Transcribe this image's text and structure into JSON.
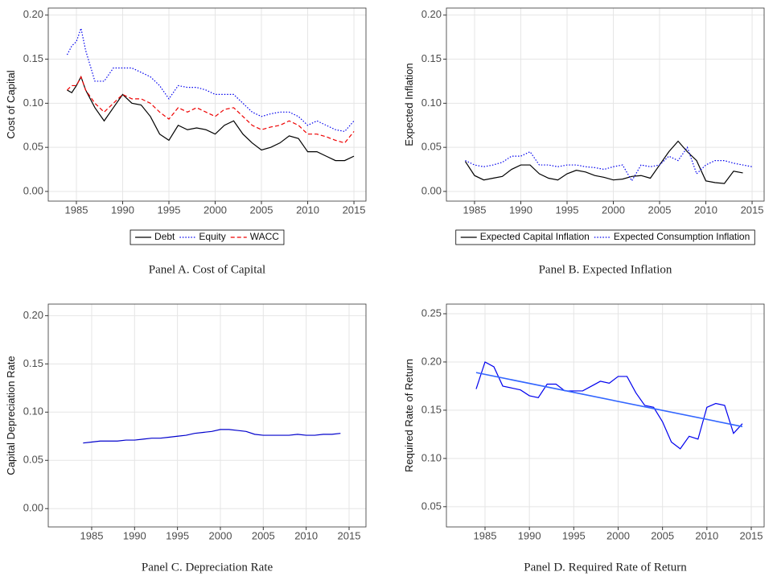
{
  "chart_data": [
    {
      "type": "line",
      "caption": "Panel A. Cost of Capital",
      "y_label": "Cost of Capital",
      "x": [
        1984,
        1984.5,
        1985,
        1985.5,
        1986,
        1987,
        1988,
        1989,
        1990,
        1991,
        1992,
        1993,
        1994,
        1995,
        1996,
        1997,
        1998,
        1999,
        2000,
        2001,
        2002,
        2003,
        2004,
        2005,
        2006,
        2007,
        2008,
        2009,
        2010,
        2011,
        2012,
        2013,
        2014,
        2015
      ],
      "series": [
        {
          "name": "Debt",
          "color": "#000000",
          "dash": "solid",
          "values": [
            0.115,
            0.112,
            0.12,
            0.13,
            0.115,
            0.095,
            0.08,
            0.095,
            0.11,
            0.1,
            0.098,
            0.085,
            0.065,
            0.058,
            0.075,
            0.07,
            0.072,
            0.07,
            0.065,
            0.075,
            0.08,
            0.065,
            0.055,
            0.047,
            0.05,
            0.055,
            0.063,
            0.06,
            0.045,
            0.045,
            0.04,
            0.035,
            0.035,
            0.04
          ]
        },
        {
          "name": "Equity",
          "color": "#0000ee",
          "dash": "dotted",
          "values": [
            0.155,
            0.165,
            0.17,
            0.185,
            0.16,
            0.125,
            0.125,
            0.14,
            0.14,
            0.14,
            0.135,
            0.13,
            0.12,
            0.105,
            0.12,
            0.118,
            0.118,
            0.115,
            0.11,
            0.11,
            0.11,
            0.1,
            0.09,
            0.085,
            0.088,
            0.09,
            0.09,
            0.085,
            0.075,
            0.08,
            0.075,
            0.07,
            0.068,
            0.08
          ]
        },
        {
          "name": "WACC",
          "color": "#ee0000",
          "dash": "dashed",
          "values": [
            0.115,
            0.12,
            0.12,
            0.13,
            0.115,
            0.1,
            0.09,
            0.1,
            0.11,
            0.105,
            0.105,
            0.1,
            0.09,
            0.082,
            0.095,
            0.09,
            0.095,
            0.09,
            0.085,
            0.093,
            0.095,
            0.085,
            0.075,
            0.07,
            0.073,
            0.075,
            0.08,
            0.075,
            0.065,
            0.065,
            0.062,
            0.058,
            0.055,
            0.068
          ]
        }
      ],
      "xlim": [
        1981.96,
        2016.3
      ],
      "xticks": [
        1985,
        1990,
        1995,
        2000,
        2005,
        2010,
        2015
      ],
      "ylim": [
        -0.011,
        0.208
      ],
      "yticks": [
        {
          "value": 0,
          "label": "0.00"
        },
        {
          "value": 0.05,
          "label": "0.05"
        },
        {
          "value": 0.1,
          "label": "0.10"
        },
        {
          "value": 0.15,
          "label": "0.15"
        },
        {
          "value": 0.2,
          "label": "0.20"
        }
      ],
      "grid": true,
      "legend": "bottom"
    },
    {
      "type": "line",
      "caption": "Panel B. Expected Inflation",
      "y_label": "Expected Inflation",
      "x": [
        1984,
        1985,
        1986,
        1987,
        1988,
        1989,
        1990,
        1991,
        1992,
        1993,
        1994,
        1995,
        1996,
        1997,
        1998,
        1999,
        2000,
        2001,
        2002,
        2003,
        2004,
        2005,
        2006,
        2007,
        2008,
        2009,
        2010,
        2011,
        2012,
        2013,
        2014,
        2015
      ],
      "series": [
        {
          "name": "Expected Capital Inflation",
          "color": "#000000",
          "dash": "solid",
          "values": [
            0.034,
            0.018,
            0.013,
            0.015,
            0.017,
            0.025,
            0.03,
            0.03,
            0.02,
            0.015,
            0.013,
            0.02,
            0.024,
            0.022,
            0.018,
            0.016,
            0.013,
            0.014,
            0.017,
            0.018,
            0.015,
            0.03,
            0.045,
            0.057,
            0.045,
            0.035,
            0.012,
            0.01,
            0.009,
            0.023,
            0.021,
            null
          ]
        },
        {
          "name": "Expected Consumption Inflation",
          "color": "#0000ee",
          "dash": "dotted",
          "values": [
            0.035,
            0.03,
            0.028,
            0.03,
            0.033,
            0.04,
            0.04,
            0.045,
            0.03,
            0.03,
            0.028,
            0.03,
            0.03,
            0.028,
            0.027,
            0.025,
            0.028,
            0.03,
            0.012,
            0.03,
            0.028,
            0.03,
            0.04,
            0.035,
            0.05,
            0.02,
            0.03,
            0.035,
            0.035,
            0.032,
            0.03,
            0.028
          ]
        }
      ],
      "xlim": [
        1981.96,
        2016.3
      ],
      "xticks": [
        1985,
        1990,
        1995,
        2000,
        2005,
        2010,
        2015
      ],
      "ylim": [
        -0.011,
        0.208
      ],
      "yticks": [
        {
          "value": 0,
          "label": "0.00"
        },
        {
          "value": 0.05,
          "label": "0.05"
        },
        {
          "value": 0.1,
          "label": "0.10"
        },
        {
          "value": 0.15,
          "label": "0.15"
        },
        {
          "value": 0.2,
          "label": "0.20"
        }
      ],
      "grid": true,
      "legend": "bottom"
    },
    {
      "type": "line",
      "caption": "Panel C. Depreciation Rate",
      "y_label": "Capital Depreciation Rate",
      "x": [
        1984,
        1985,
        1986,
        1987,
        1988,
        1989,
        1990,
        1991,
        1992,
        1993,
        1994,
        1995,
        1996,
        1997,
        1998,
        1999,
        2000,
        2001,
        2002,
        2003,
        2004,
        2005,
        2006,
        2007,
        2008,
        2009,
        2010,
        2011,
        2012,
        2013,
        2014
      ],
      "series": [
        {
          "color": "#0000cc",
          "dash": "solid",
          "values": [
            0.068,
            0.069,
            0.07,
            0.07,
            0.07,
            0.071,
            0.071,
            0.072,
            0.073,
            0.073,
            0.074,
            0.075,
            0.076,
            0.078,
            0.079,
            0.08,
            0.082,
            0.082,
            0.081,
            0.08,
            0.077,
            0.076,
            0.076,
            0.076,
            0.076,
            0.077,
            0.076,
            0.076,
            0.077,
            0.077,
            0.078
          ]
        }
      ],
      "xlim": [
        1979.94,
        2016.97
      ],
      "xticks": [
        1985,
        1990,
        1995,
        2000,
        2005,
        2010,
        2015
      ],
      "ylim": [
        -0.019,
        0.212
      ],
      "yticks": [
        {
          "value": 0,
          "label": "0.00"
        },
        {
          "value": 0.05,
          "label": "0.05"
        },
        {
          "value": 0.1,
          "label": "0.10"
        },
        {
          "value": 0.15,
          "label": "0.15"
        },
        {
          "value": 0.2,
          "label": "0.20"
        }
      ],
      "grid": true
    },
    {
      "type": "line",
      "caption": "Panel D. Required Rate of Return",
      "y_label": "Required Rate of Return",
      "x": [
        1984,
        1985,
        1986,
        1987,
        1988,
        1989,
        1990,
        1991,
        1992,
        1993,
        1994,
        1995,
        1996,
        1997,
        1998,
        1999,
        2000,
        2001,
        2002,
        2003,
        2004,
        2005,
        2006,
        2007,
        2008,
        2009,
        2010,
        2011,
        2012,
        2013,
        2014
      ],
      "series": [
        {
          "color": "#0000ee",
          "dash": "solid",
          "values": [
            0.172,
            0.2,
            0.195,
            0.175,
            0.173,
            0.171,
            0.165,
            0.163,
            0.177,
            0.177,
            0.17,
            0.17,
            0.17,
            0.175,
            0.18,
            0.178,
            0.185,
            0.185,
            0.168,
            0.155,
            0.153,
            0.138,
            0.117,
            0.11,
            0.123,
            0.12,
            0.153,
            0.157,
            0.155,
            0.126,
            0.136
          ]
        }
      ],
      "trend": {
        "x": [
          1984,
          2014
        ],
        "values": [
          0.189,
          0.133
        ],
        "color": "#3366ff"
      },
      "xlim": [
        1980.65,
        2016.45
      ],
      "xticks": [
        1985,
        1990,
        1995,
        2000,
        2005,
        2010,
        2015
      ],
      "ylim": [
        0.029,
        0.26
      ],
      "yticks": [
        {
          "value": 0.05,
          "label": "0.05"
        },
        {
          "value": 0.1,
          "label": "0.10"
        },
        {
          "value": 0.15,
          "label": "0.15"
        },
        {
          "value": 0.2,
          "label": "0.20"
        },
        {
          "value": 0.25,
          "label": "0.25"
        }
      ],
      "grid": true
    }
  ]
}
